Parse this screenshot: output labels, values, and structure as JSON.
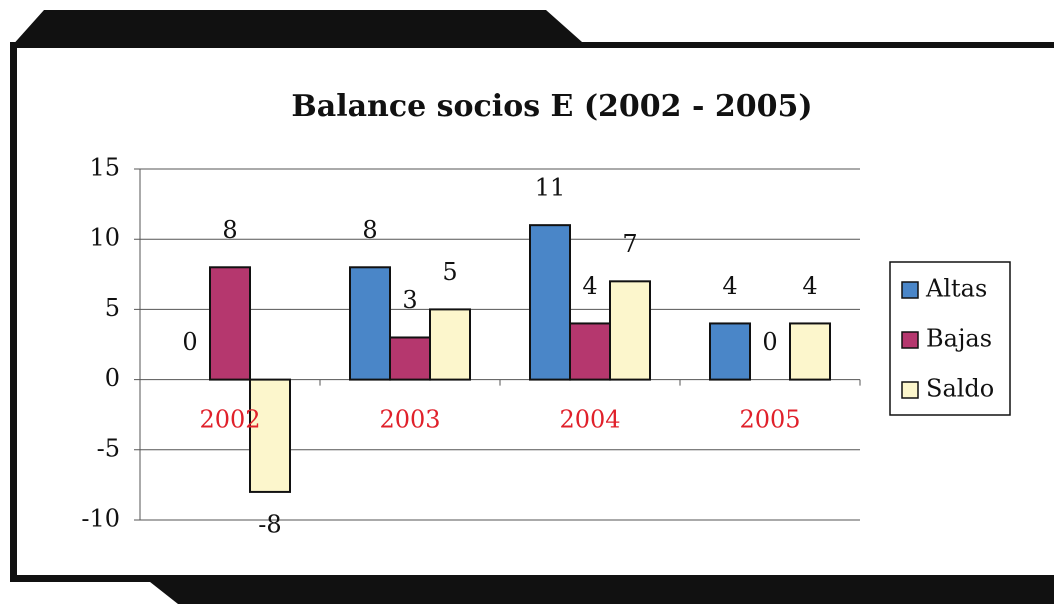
{
  "chart_data": {
    "type": "bar",
    "title": "Balance socios E (2002 - 2005)",
    "categories": [
      "2002",
      "2003",
      "2004",
      "2005"
    ],
    "series": [
      {
        "name": "Altas",
        "color": "#4a86c8",
        "values": [
          0,
          8,
          11,
          4
        ]
      },
      {
        "name": "Bajas",
        "color": "#b5376e",
        "values": [
          8,
          3,
          4,
          0
        ]
      },
      {
        "name": "Saldo",
        "color": "#fcf6cc",
        "values": [
          -8,
          5,
          7,
          4
        ]
      }
    ],
    "ylim": [
      -10,
      15
    ],
    "yticks": [
      -10,
      -5,
      0,
      5,
      10,
      15
    ],
    "grid": true,
    "legend": "right"
  }
}
